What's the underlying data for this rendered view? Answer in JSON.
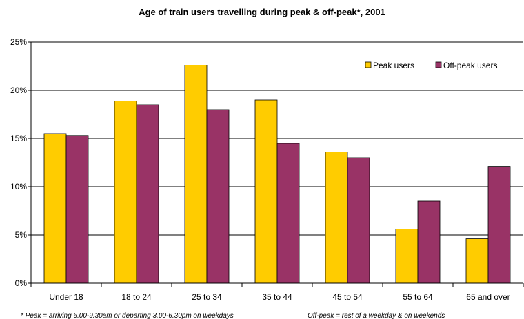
{
  "chart_data": {
    "type": "bar",
    "title": "Age of train users travelling during peak & off-peak*, 2001",
    "categories": [
      "Under 18",
      "18 to 24",
      "25 to 34",
      "35 to 44",
      "45 to 54",
      "55 to 64",
      "65 and over"
    ],
    "series": [
      {
        "name": "Peak users",
        "color": "#FFCC00",
        "values": [
          15.5,
          18.9,
          22.6,
          19.0,
          13.6,
          5.6,
          4.6
        ]
      },
      {
        "name": "Off-peak users",
        "color": "#993366",
        "values": [
          15.3,
          18.5,
          18.0,
          14.5,
          13.0,
          8.5,
          12.1
        ]
      }
    ],
    "y_ticks": [
      "0%",
      "5%",
      "10%",
      "15%",
      "20%",
      "25%"
    ],
    "ylim": [
      0,
      25
    ],
    "y_unit": "%",
    "grid": true,
    "legend_position": "top-right",
    "footnotes": {
      "peak": "* Peak = arriving 6.00-9.30am or departing 3.00-6.30pm on weekdays",
      "offpeak": "Off-peak = rest of a weekday & on weekends"
    }
  }
}
